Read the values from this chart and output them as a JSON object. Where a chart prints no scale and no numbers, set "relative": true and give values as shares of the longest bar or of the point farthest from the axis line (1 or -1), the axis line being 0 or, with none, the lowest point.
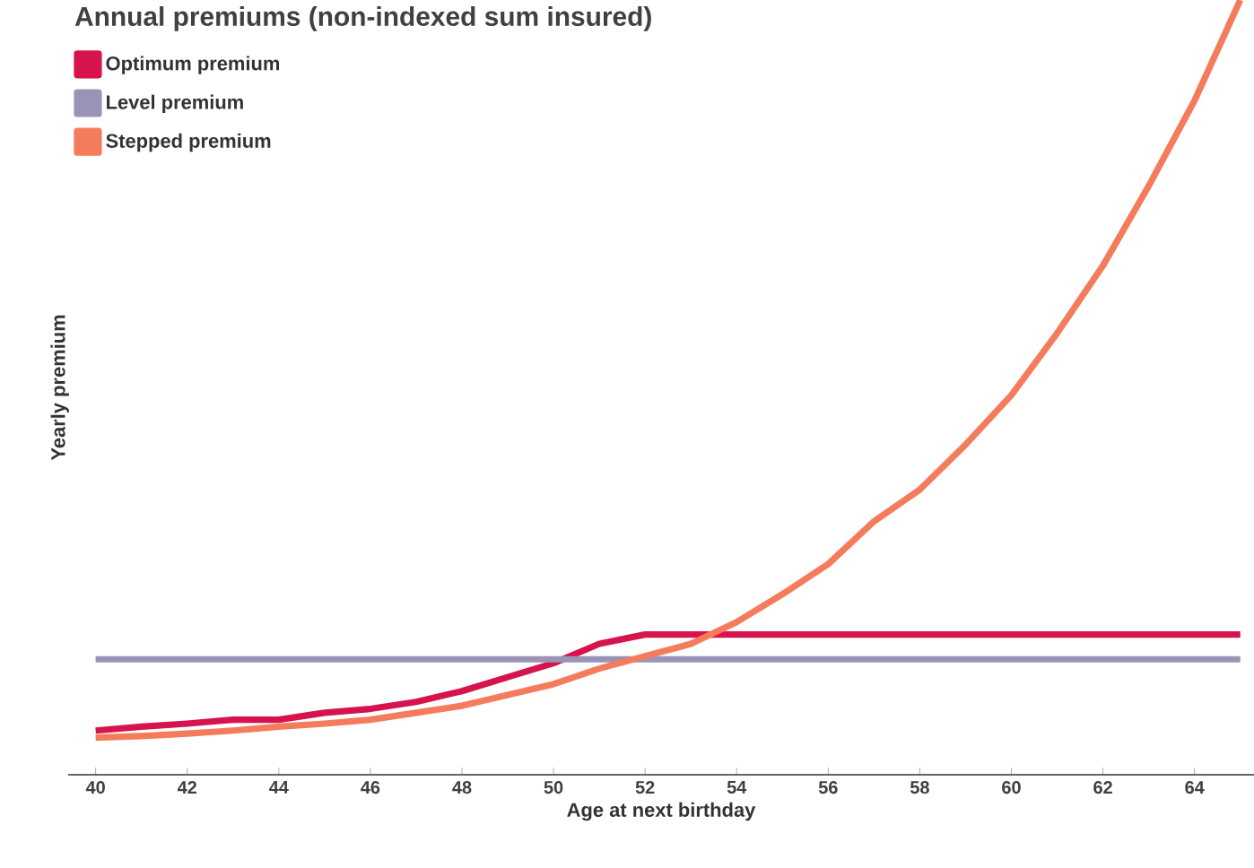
{
  "chart_data": {
    "type": "line",
    "title": "Annual premiums (non-indexed sum insured)",
    "xlabel": "Age at next birthday",
    "ylabel": "Yearly premium",
    "relative": true,
    "x": [
      40,
      41,
      42,
      43,
      44,
      45,
      46,
      47,
      48,
      49,
      50,
      51,
      52,
      53,
      54,
      55,
      56,
      57,
      58,
      59,
      60,
      61,
      62,
      63,
      64,
      65
    ],
    "xlim": [
      39.4,
      65.3
    ],
    "xticks": [
      40,
      42,
      44,
      46,
      48,
      50,
      52,
      54,
      56,
      58,
      60,
      62,
      64
    ],
    "series": [
      {
        "name": "Optimum premium",
        "color": "#d6134c",
        "values": [
          0.057,
          0.062,
          0.066,
          0.071,
          0.071,
          0.08,
          0.085,
          0.094,
          0.108,
          0.126,
          0.144,
          0.169,
          0.181,
          0.181,
          0.181,
          0.181,
          0.181,
          0.181,
          0.181,
          0.181,
          0.181,
          0.181,
          0.181,
          0.181,
          0.181,
          0.181
        ]
      },
      {
        "name": "Level premium",
        "color": "#9b93b5",
        "values": [
          0.149,
          0.149,
          0.149,
          0.149,
          0.149,
          0.149,
          0.149,
          0.149,
          0.149,
          0.149,
          0.149,
          0.149,
          0.149,
          0.149,
          0.149,
          0.149,
          0.149,
          0.149,
          0.149,
          0.149,
          0.149,
          0.149,
          0.149,
          0.149,
          0.149,
          0.149
        ]
      },
      {
        "name": "Stepped premium",
        "color": "#f47c5c",
        "values": [
          0.048,
          0.05,
          0.053,
          0.057,
          0.062,
          0.066,
          0.071,
          0.08,
          0.089,
          0.103,
          0.117,
          0.137,
          0.153,
          0.169,
          0.197,
          0.233,
          0.272,
          0.327,
          0.368,
          0.426,
          0.49,
          0.57,
          0.657,
          0.76,
          0.87,
          1
        ]
      }
    ],
    "legend": "top left",
    "grid": false,
    "marker": "none",
    "line_style": "solid"
  }
}
